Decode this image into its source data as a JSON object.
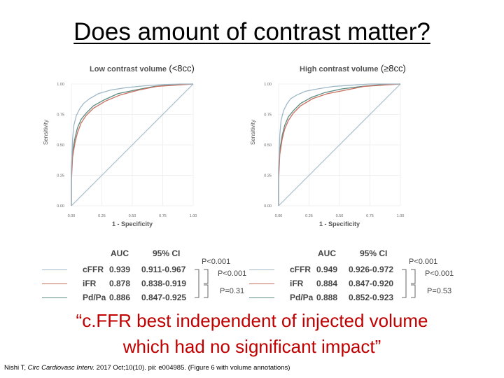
{
  "slide": {
    "title": "Does amount of contrast matter?",
    "quote_line1": "“c.FFR best independent of injected volume",
    "quote_line2": "which had no significant impact”",
    "citation_prefix": "Nishi T, ",
    "citation_journal": "Circ Cardiovasc Interv.",
    "citation_suffix": " 2017 Oct;10(10). pii: e004985. (Figure 6 with volume annotations)"
  },
  "colors": {
    "cFFR": "#9fb8c8",
    "iFR": "#c87060",
    "PdPa": "#5a8c82",
    "diag": "#9fb8c8",
    "quote": "#c00000"
  },
  "chart_data": [
    {
      "type": "line",
      "title": "Low contrast volume",
      "annotation": "(<8cc)",
      "xlabel": "1 - Specificity",
      "ylabel": "Sensitivity",
      "xlim": [
        0,
        1
      ],
      "ylim": [
        0,
        1
      ],
      "ticks": [
        "0.00",
        "0.25",
        "0.50",
        "0.75",
        "1.00"
      ],
      "series": [
        {
          "name": "cFFR",
          "x": [
            0,
            0,
            0.01,
            0.02,
            0.04,
            0.07,
            0.1,
            0.15,
            0.22,
            0.32,
            0.45,
            0.6,
            0.75,
            0.9,
            1
          ],
          "y": [
            0,
            0.3,
            0.55,
            0.66,
            0.74,
            0.8,
            0.84,
            0.88,
            0.92,
            0.95,
            0.97,
            0.985,
            0.995,
            1,
            1
          ]
        },
        {
          "name": "iFR",
          "x": [
            0,
            0,
            0.01,
            0.03,
            0.05,
            0.08,
            0.12,
            0.18,
            0.28,
            0.4,
            0.55,
            0.7,
            0.85,
            1
          ],
          "y": [
            0,
            0.2,
            0.4,
            0.52,
            0.6,
            0.68,
            0.74,
            0.8,
            0.86,
            0.91,
            0.95,
            0.98,
            0.99,
            1
          ]
        },
        {
          "name": "Pd/Pa",
          "x": [
            0,
            0,
            0.01,
            0.03,
            0.05,
            0.08,
            0.12,
            0.18,
            0.27,
            0.38,
            0.52,
            0.68,
            0.84,
            1
          ],
          "y": [
            0,
            0.33,
            0.45,
            0.56,
            0.64,
            0.71,
            0.76,
            0.82,
            0.87,
            0.92,
            0.95,
            0.98,
            0.995,
            1
          ]
        }
      ],
      "table": {
        "headers": [
          "AUC",
          "95% CI"
        ],
        "rows": [
          {
            "name": "cFFR",
            "auc": "0.939",
            "ci": "0.911-0.967"
          },
          {
            "name": "iFR",
            "auc": "0.878",
            "ci": "0.838-0.919"
          },
          {
            "name": "Pd/Pa",
            "auc": "0.886",
            "ci": "0.847-0.925"
          }
        ],
        "pvalues": [
          "P<0.001",
          "P<0.001",
          "P=0.31"
        ]
      }
    },
    {
      "type": "line",
      "title": "High contrast volume",
      "annotation": "(≥8cc)",
      "xlabel": "1 - Specificity",
      "ylabel": "Sensitivity",
      "xlim": [
        0,
        1
      ],
      "ylim": [
        0,
        1
      ],
      "ticks": [
        "0.00",
        "0.25",
        "0.50",
        "0.75",
        "1.00"
      ],
      "series": [
        {
          "name": "cFFR",
          "x": [
            0,
            0,
            0.01,
            0.02,
            0.04,
            0.07,
            0.1,
            0.15,
            0.22,
            0.32,
            0.45,
            0.6,
            0.75,
            0.9,
            1
          ],
          "y": [
            0,
            0.3,
            0.58,
            0.7,
            0.78,
            0.84,
            0.88,
            0.91,
            0.94,
            0.96,
            0.98,
            0.99,
            1,
            1,
            1
          ]
        },
        {
          "name": "iFR",
          "x": [
            0,
            0,
            0.01,
            0.03,
            0.05,
            0.08,
            0.12,
            0.18,
            0.28,
            0.4,
            0.55,
            0.7,
            0.85,
            1
          ],
          "y": [
            0,
            0.2,
            0.42,
            0.55,
            0.63,
            0.7,
            0.76,
            0.82,
            0.88,
            0.92,
            0.95,
            0.98,
            0.99,
            1
          ]
        },
        {
          "name": "Pd/Pa",
          "x": [
            0,
            0,
            0.01,
            0.03,
            0.05,
            0.08,
            0.12,
            0.18,
            0.27,
            0.38,
            0.52,
            0.68,
            0.84,
            1
          ],
          "y": [
            0,
            0.32,
            0.46,
            0.58,
            0.66,
            0.73,
            0.78,
            0.84,
            0.89,
            0.93,
            0.96,
            0.98,
            0.995,
            1
          ]
        }
      ],
      "table": {
        "headers": [
          "AUC",
          "95% CI"
        ],
        "rows": [
          {
            "name": "cFFR",
            "auc": "0.949",
            "ci": "0.926-0.972"
          },
          {
            "name": "iFR",
            "auc": "0.884",
            "ci": "0.847-0.920"
          },
          {
            "name": "Pd/Pa",
            "auc": "0.888",
            "ci": "0.852-0.923"
          }
        ],
        "pvalues": [
          "P<0.001",
          "P<0.001",
          "P=0.53"
        ]
      }
    }
  ]
}
